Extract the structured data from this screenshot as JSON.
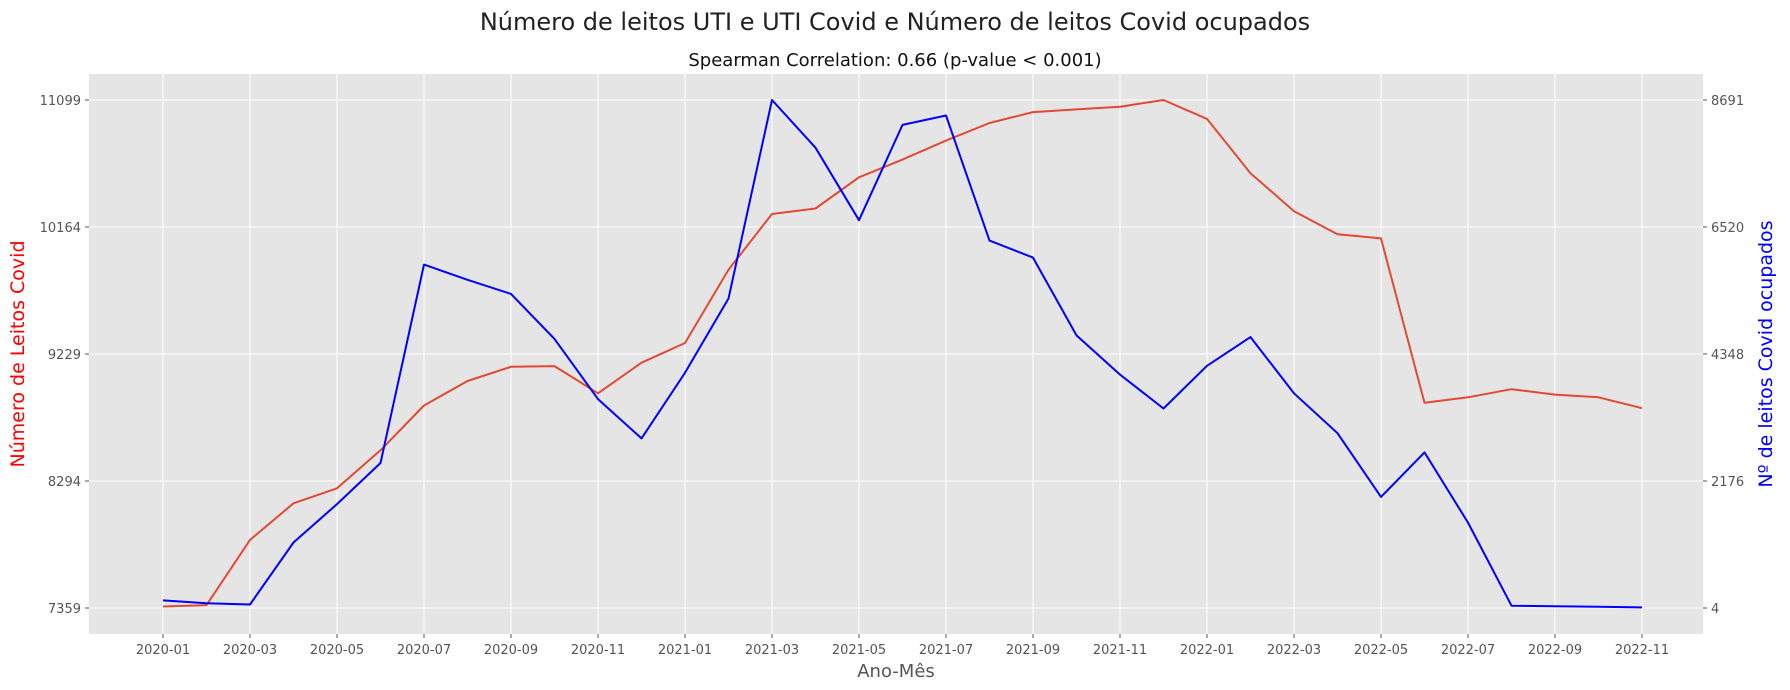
{
  "chart_data": {
    "type": "line",
    "title": "Número de leitos UTI e UTI Covid e Número de leitos Covid ocupados",
    "subtitle": "Spearman Correlation: 0.66 (p-value < 0.001)",
    "xlabel": "Ano-Mês",
    "ylabel_left": "Número de Leitos Covid",
    "ylabel_right": "Nº de leitos Covid ocupados",
    "grid": true,
    "x": [
      "2020-01",
      "2020-02",
      "2020-03",
      "2020-04",
      "2020-05",
      "2020-06",
      "2020-07",
      "2020-08",
      "2020-09",
      "2020-10",
      "2020-11",
      "2020-12",
      "2021-01",
      "2021-02",
      "2021-03",
      "2021-04",
      "2021-05",
      "2021-06",
      "2021-07",
      "2021-08",
      "2021-09",
      "2021-10",
      "2021-11",
      "2021-12",
      "2022-01",
      "2022-02",
      "2022-03",
      "2022-04",
      "2022-05",
      "2022-06",
      "2022-07",
      "2022-08",
      "2022-09",
      "2022-10",
      "2022-11"
    ],
    "x_tick_labels": [
      "2020-01",
      "2020-03",
      "2020-05",
      "2020-07",
      "2020-09",
      "2020-11",
      "2021-01",
      "2021-03",
      "2021-05",
      "2021-07",
      "2021-09",
      "2021-11",
      "2022-01",
      "2022-03",
      "2022-05",
      "2022-07",
      "2022-09",
      "2022-11"
    ],
    "y_left": {
      "lim": [
        7359,
        11099
      ],
      "ticks": [
        7359,
        8294,
        9229,
        10164,
        11099
      ]
    },
    "y_right": {
      "lim": [
        4,
        8691
      ],
      "ticks": [
        4,
        2176,
        4348,
        6520,
        8691
      ]
    },
    "series": [
      {
        "axis": "left",
        "color": "#E24A33",
        "values": [
          7370,
          7380,
          7860,
          8130,
          8240,
          8520,
          8850,
          9030,
          9135,
          9140,
          8940,
          9165,
          9310,
          9850,
          10260,
          10300,
          10530,
          10660,
          10800,
          10930,
          11010,
          11030,
          11050,
          11099,
          10960,
          10560,
          10280,
          10110,
          10080,
          8870,
          8910,
          8970,
          8930,
          8910,
          8830
        ]
      },
      {
        "axis": "right",
        "color": "#0000FF",
        "values": [
          134,
          84,
          64,
          1124,
          1780,
          2484,
          5876,
          5616,
          5376,
          4606,
          3576,
          2904,
          4026,
          5296,
          8691,
          7876,
          6636,
          8266,
          8426,
          6286,
          5996,
          4666,
          3996,
          3416,
          4146,
          4636,
          3676,
          2994,
          1904,
          2664,
          1464,
          44,
          34,
          24,
          14
        ]
      }
    ]
  }
}
